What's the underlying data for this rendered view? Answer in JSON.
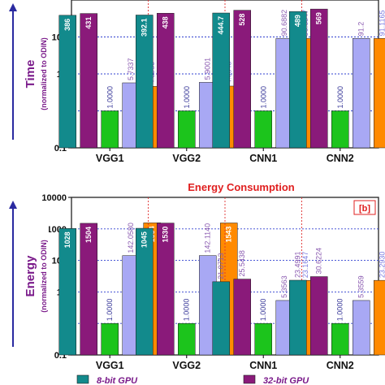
{
  "chart_data": [
    {
      "type": "bar",
      "tag": "",
      "title": "",
      "ylabel": "Time",
      "ylabel_sub": "(normalized to ODIN)",
      "yscale": "log",
      "ylim": [
        0.1,
        1000
      ],
      "yticks": [
        "0.1",
        "1",
        "10",
        "100"
      ],
      "grid": true,
      "categories": [
        "VGG1",
        "VGG2",
        "CNN1",
        "CNN2"
      ],
      "series": [
        {
          "name": "",
          "color": "#128a8c",
          "values": [
            386,
            392.1,
            444.7,
            489
          ],
          "labels": [
            "386",
            "392.1",
            "444.7",
            "489"
          ]
        },
        {
          "name": "",
          "color": "#8a1a7a",
          "values": [
            431,
            438,
            528,
            569
          ],
          "labels": [
            "431",
            "438",
            "528",
            "569"
          ]
        },
        {
          "name": "",
          "color": "#1cc41c",
          "values": [
            1,
            1,
            1,
            1
          ],
          "labels": [
            "1.0000",
            "1.0000",
            "1.0000",
            "1.0000"
          ]
        },
        {
          "name": "",
          "color": "#a8a8f4",
          "values": [
            5.7337,
            5.9001,
            90.6882,
            91.2
          ],
          "labels": [
            "5.7337",
            "5.9001",
            "90.6882",
            "91.2"
          ]
        },
        {
          "name": "",
          "color": "#ff8a00",
          "values": [
            4.598,
            4.6845,
            90.6547,
            91.1165
          ],
          "labels": [
            "4.5980",
            "4.6845",
            "90.6547",
            "91.1165"
          ]
        }
      ]
    },
    {
      "type": "bar",
      "tag": "[b]",
      "title": "Energy Consumption",
      "ylabel": "Energy",
      "ylabel_sub": "(normalized to ODIN)",
      "yscale": "log",
      "ylim": [
        0.1,
        10000
      ],
      "yticks": [
        "0.1",
        "1",
        "10",
        "100",
        "1000",
        "10000"
      ],
      "grid": true,
      "categories": [
        "VGG1",
        "VGG2",
        "CNN1",
        "CNN2"
      ],
      "series": [
        {
          "name": "",
          "color": "#128a8c",
          "values": [
            1028,
            1045,
            21.0713,
            23.4991
          ],
          "labels": [
            "1028",
            "1045",
            "21.0713",
            "23.4991"
          ]
        },
        {
          "name": "",
          "color": "#8a1a7a",
          "values": [
            1504,
            1530,
            25.5438,
            30.6224
          ],
          "labels": [
            "1504",
            "1530",
            "25.5438",
            "30.6224"
          ]
        },
        {
          "name": "",
          "color": "#1cc41c",
          "values": [
            1,
            1,
            1,
            1
          ],
          "labels": [
            "1.0000",
            "1.0000",
            "1.0000",
            "1.0000"
          ]
        },
        {
          "name": "",
          "color": "#a8a8f4",
          "values": [
            142.058,
            142.114,
            5.3563,
            5.3559
          ],
          "labels": [
            "142.0580",
            "142.1140",
            "5.3563",
            "5.3559"
          ]
        },
        {
          "name": "",
          "color": "#ff8a00",
          "values": [
            1554,
            1543,
            23.1647,
            23.293
          ],
          "labels": [
            "1554",
            "1543",
            "23.1647",
            "23.2930"
          ]
        }
      ]
    }
  ],
  "legend": [
    {
      "text": "8-bit GPU",
      "color": "#128a8c"
    },
    {
      "text": "32-bit GPU",
      "color": "#8a1a7a"
    }
  ]
}
